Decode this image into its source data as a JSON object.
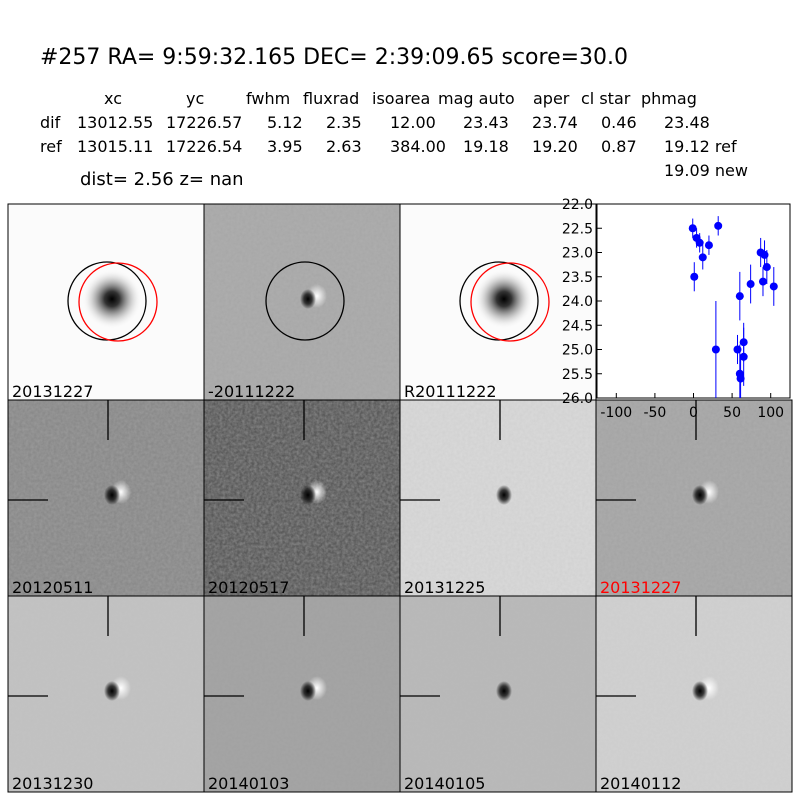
{
  "header": {
    "title": "#257   RA= 9:59:32.165 DEC= 2:39:09.65      score=30.0"
  },
  "table": {
    "columns": [
      "xc",
      "yc",
      "fwhm",
      "fluxrad",
      "isoarea",
      "mag auto",
      "aper",
      "cl star",
      "phmag"
    ],
    "rows": [
      [
        "dif",
        "13012.55",
        "17226.57",
        "5.12",
        "2.35",
        "12.00",
        "23.43",
        "23.74",
        "0.46",
        "23.48"
      ],
      [
        "ref",
        "13015.11",
        "17226.54",
        "3.95",
        "2.63",
        "384.00",
        "19.18",
        "19.20",
        "0.87",
        "19.12 ref"
      ]
    ],
    "extra": "19.09 new"
  },
  "dist_line": "dist=  2.56      z=   nan",
  "stamps": [
    {
      "label": "20131227",
      "color": "#000000"
    },
    {
      "label": "-20111222",
      "color": "#000000"
    },
    {
      "label": "R20111222",
      "color": "#000000"
    },
    {
      "label": "20120511",
      "color": "#000000"
    },
    {
      "label": "20120517",
      "color": "#000000"
    },
    {
      "label": "20131225",
      "color": "#000000"
    },
    {
      "label": "20131227",
      "color": "#ff0000"
    },
    {
      "label": "20131230",
      "color": "#000000"
    },
    {
      "label": "20140103",
      "color": "#000000"
    },
    {
      "label": "20140105",
      "color": "#000000"
    },
    {
      "label": "20140112",
      "color": "#000000"
    }
  ],
  "chart_data": {
    "type": "scatter",
    "x": [
      -1,
      1,
      4,
      8,
      12,
      20,
      32,
      29,
      57,
      60,
      61,
      60,
      65,
      65,
      74,
      87,
      90,
      92,
      95,
      104
    ],
    "values": [
      22.5,
      23.5,
      22.7,
      22.8,
      23.1,
      22.85,
      22.45,
      25.0,
      25.0,
      25.5,
      25.6,
      23.9,
      24.85,
      25.15,
      23.65,
      23.0,
      23.6,
      23.05,
      23.3,
      23.7
    ],
    "errors": [
      0.2,
      0.3,
      0.2,
      0.2,
      0.25,
      0.2,
      0.2,
      1.0,
      0.3,
      0.6,
      0.5,
      0.5,
      0.4,
      0.6,
      0.4,
      0.3,
      0.3,
      0.3,
      0.35,
      0.4
    ],
    "color": "#0000ff",
    "xlim": [
      -125,
      125
    ],
    "ylim": [
      26,
      22
    ],
    "xticks": [
      -100,
      -50,
      0,
      50,
      100
    ],
    "yticks": [
      {
        "value": 22,
        "label": "22.0"
      },
      22.5,
      {
        "value": 23,
        "label": "23.0"
      },
      23.5,
      {
        "value": 24,
        "label": "24.0"
      },
      24.5,
      {
        "value": 25,
        "label": "25.0"
      },
      25.5,
      {
        "value": 26,
        "label": "26.0"
      }
    ]
  }
}
